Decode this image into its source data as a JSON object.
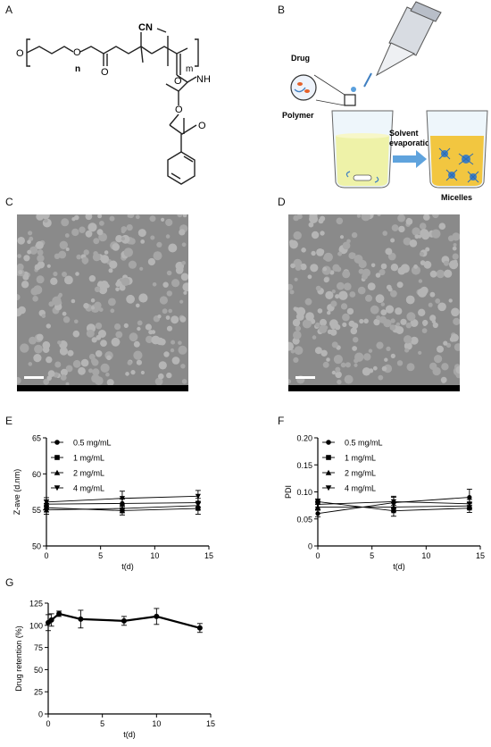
{
  "panel_labels": [
    "A",
    "B",
    "C",
    "D",
    "E",
    "F",
    "G"
  ],
  "panel_a": {
    "atom_labels": {
      "cn": "CN",
      "n": "n",
      "m": "m",
      "nh": "NH",
      "o": "O"
    }
  },
  "panel_b": {
    "drug_label": "Drug",
    "polymer_label": "Polymer",
    "arrow_label_line1": "Solvent",
    "arrow_label_line2": "evaporation",
    "micelles_label": "Micelles"
  },
  "chart_data": [
    {
      "panel": "E",
      "type": "line",
      "ylabel": "Z-ave (d.nm)",
      "xlabel": "t(d)",
      "xlim": [
        0,
        15
      ],
      "ylim": [
        50,
        65
      ],
      "xticks": [
        0,
        5,
        10,
        15
      ],
      "yticks": [
        50,
        55,
        60,
        65
      ],
      "legend_position": "top-left",
      "series": [
        {
          "name": "0.5 mg/mL",
          "marker": "circle",
          "x": [
            0,
            7,
            14
          ],
          "y": [
            55.8,
            55.9,
            56.0
          ],
          "err": [
            0.6,
            0.6,
            0.6
          ]
        },
        {
          "name": "1 mg/mL",
          "marker": "square",
          "x": [
            0,
            7,
            14
          ],
          "y": [
            55.3,
            54.9,
            55.2
          ],
          "err": [
            0.6,
            0.6,
            0.8
          ]
        },
        {
          "name": "2 mg/mL",
          "marker": "triangle-up",
          "x": [
            0,
            7,
            14
          ],
          "y": [
            55.0,
            55.2,
            55.6
          ],
          "err": [
            0.6,
            0.6,
            0.6
          ]
        },
        {
          "name": "4 mg/mL",
          "marker": "triangle-down",
          "x": [
            0,
            7,
            14
          ],
          "y": [
            56.1,
            56.6,
            56.9
          ],
          "err": [
            0.6,
            1.0,
            0.8
          ]
        }
      ]
    },
    {
      "panel": "F",
      "type": "line",
      "ylabel": "PDI",
      "xlabel": "t(d)",
      "xlim": [
        0,
        15
      ],
      "ylim": [
        0,
        0.2
      ],
      "xticks": [
        0,
        5,
        10,
        15
      ],
      "yticks": [
        0.0,
        0.05,
        0.1,
        0.15,
        0.2
      ],
      "legend_position": "top-left",
      "series": [
        {
          "name": "0.5 mg/mL",
          "marker": "circle",
          "x": [
            0,
            7,
            14
          ],
          "y": [
            0.06,
            0.08,
            0.09
          ],
          "err": [
            0.006,
            0.01,
            0.015
          ]
        },
        {
          "name": "1 mg/mL",
          "marker": "square",
          "x": [
            0,
            7,
            14
          ],
          "y": [
            0.082,
            0.065,
            0.07
          ],
          "err": [
            0.005,
            0.01,
            0.008
          ]
        },
        {
          "name": "2 mg/mL",
          "marker": "triangle-up",
          "x": [
            0,
            7,
            14
          ],
          "y": [
            0.072,
            0.072,
            0.074
          ],
          "err": [
            0.005,
            0.008,
            0.006
          ]
        },
        {
          "name": "4 mg/mL",
          "marker": "triangle-down",
          "x": [
            0,
            7,
            14
          ],
          "y": [
            0.077,
            0.082,
            0.078
          ],
          "err": [
            0.005,
            0.01,
            0.008
          ]
        }
      ]
    },
    {
      "panel": "G",
      "type": "line",
      "ylabel": "Drug retention (%)",
      "xlabel": "t(d)",
      "xlim": [
        0,
        15
      ],
      "ylim": [
        0,
        125
      ],
      "xticks": [
        0,
        5,
        10,
        15
      ],
      "yticks": [
        0,
        25,
        50,
        75,
        100,
        125
      ],
      "series": [
        {
          "name": "",
          "marker": "circle",
          "x": [
            0,
            0.3,
            1,
            3,
            7,
            10,
            14
          ],
          "y": [
            103,
            106,
            113,
            107,
            105,
            110,
            97
          ],
          "err": [
            9,
            7,
            3,
            10,
            5,
            9,
            5
          ]
        }
      ]
    }
  ]
}
